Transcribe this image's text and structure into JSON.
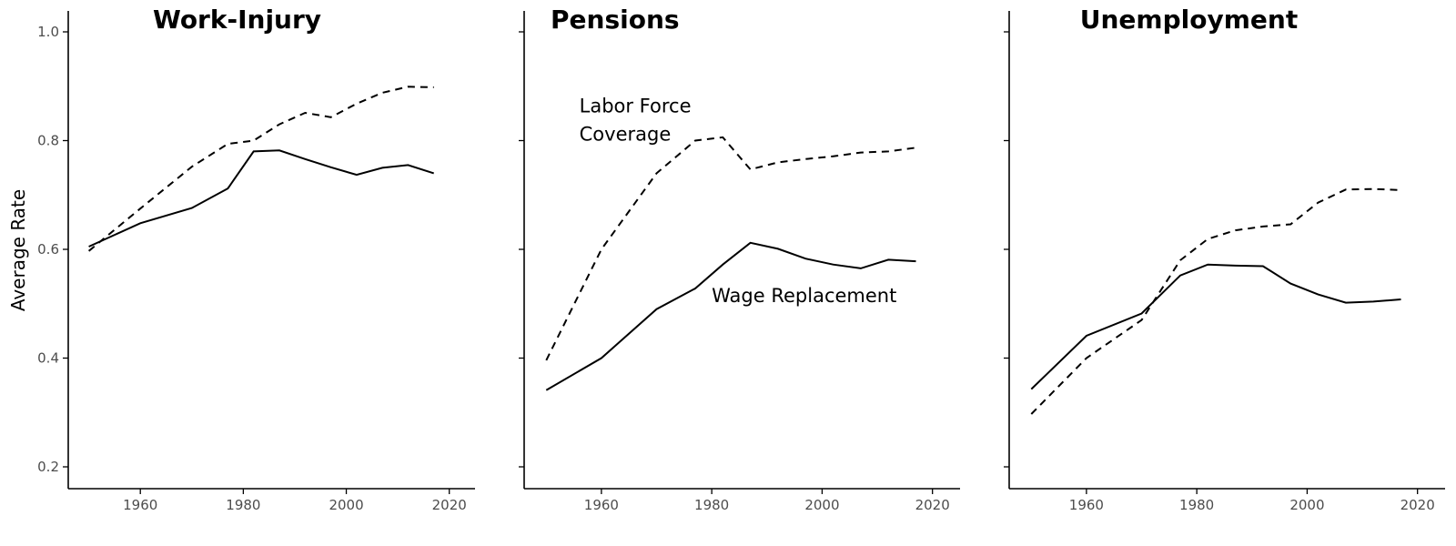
{
  "chart_data": {
    "type": "line",
    "ylabel": "Average Rate",
    "ylim": [
      0.2,
      1.04
    ],
    "xlim": [
      1946,
      2025
    ],
    "yticks": [
      0.2,
      0.4,
      0.6,
      0.8,
      1.0
    ],
    "ytick_labels": [
      "0.2",
      "0.4",
      "0.6",
      "0.8",
      "1.0"
    ],
    "xticks": [
      1960,
      1980,
      2000,
      2020
    ],
    "xtick_labels": [
      "1960",
      "1980",
      "2000",
      "2020"
    ],
    "grid": false,
    "legend": "none",
    "panels": [
      {
        "title": "Work-Injury",
        "series": [
          {
            "style": "solid",
            "x": [
              1950,
              1960,
              1970,
              1977,
              1982,
              1987,
              1992,
              1997,
              2002,
              2007,
              2012,
              2017
            ],
            "y": [
              0.605,
              0.648,
              0.676,
              0.712,
              0.78,
              0.782,
              0.766,
              0.751,
              0.737,
              0.75,
              0.755,
              0.74
            ]
          },
          {
            "style": "dashed",
            "x": [
              1950,
              1960,
              1970,
              1977,
              1982,
              1987,
              1992,
              1997,
              2002,
              2007,
              2012,
              2017
            ],
            "y": [
              0.597,
              0.675,
              0.752,
              0.794,
              0.8,
              0.83,
              0.851,
              0.843,
              0.868,
              0.888,
              0.899,
              0.898
            ]
          }
        ],
        "annotations": []
      },
      {
        "title": "Pensions",
        "series": [
          {
            "style": "solid",
            "x": [
              1950,
              1960,
              1970,
              1977,
              1982,
              1987,
              1992,
              1997,
              2002,
              2007,
              2012,
              2017
            ],
            "y": [
              0.341,
              0.4,
              0.49,
              0.528,
              0.572,
              0.612,
              0.601,
              0.583,
              0.572,
              0.565,
              0.581,
              0.578
            ]
          },
          {
            "style": "dashed",
            "x": [
              1950,
              1960,
              1970,
              1977,
              1982,
              1987,
              1992,
              1997,
              2002,
              2007,
              2012,
              2017
            ],
            "y": [
              0.396,
              0.6,
              0.74,
              0.8,
              0.806,
              0.747,
              0.76,
              0.766,
              0.771,
              0.778,
              0.78,
              0.787
            ]
          }
        ],
        "annotations": [
          {
            "lines": [
              "Labor Force",
              "Coverage"
            ],
            "x": 1956,
            "y": 0.852
          },
          {
            "lines": [
              "Wage Replacement"
            ],
            "x": 1980,
            "y": 0.503
          }
        ]
      },
      {
        "title": "Unemployment",
        "series": [
          {
            "style": "solid",
            "x": [
              1950,
              1960,
              1970,
              1977,
              1982,
              1987,
              1992,
              1997,
              2002,
              2007,
              2012,
              2017
            ],
            "y": [
              0.343,
              0.441,
              0.482,
              0.552,
              0.572,
              0.57,
              0.569,
              0.537,
              0.517,
              0.502,
              0.504,
              0.508
            ]
          },
          {
            "style": "dashed",
            "x": [
              1950,
              1960,
              1970,
              1977,
              1982,
              1987,
              1992,
              1997,
              2002,
              2007,
              2012,
              2017
            ],
            "y": [
              0.297,
              0.4,
              0.47,
              0.58,
              0.619,
              0.635,
              0.642,
              0.646,
              0.686,
              0.71,
              0.711,
              0.709
            ]
          }
        ],
        "annotations": []
      }
    ]
  }
}
